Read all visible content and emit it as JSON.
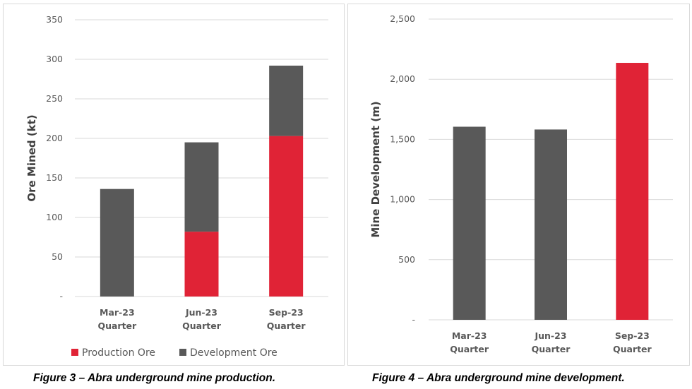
{
  "colors": {
    "production": "#E02336",
    "development": "#595959",
    "grid": "#d9d9d9",
    "axis_text": "#595959"
  },
  "chart_data": [
    {
      "type": "bar",
      "stacked": true,
      "title": "",
      "caption": "Figure 3 – Abra underground mine production.",
      "xlabel": "",
      "ylabel": "Ore Mined (kt)",
      "ylim": [
        0,
        350
      ],
      "yticks": [
        0,
        50,
        100,
        150,
        200,
        250,
        300,
        350
      ],
      "ytick_labels": [
        "-",
        "50",
        "100",
        "150",
        "200",
        "250",
        "300",
        "350"
      ],
      "grid": true,
      "categories": [
        [
          "Mar-23",
          "Quarter"
        ],
        [
          "Jun-23",
          "Quarter"
        ],
        [
          "Sep-23",
          "Quarter"
        ]
      ],
      "series": [
        {
          "name": "Production Ore",
          "color": "#E02336",
          "values": [
            0,
            82,
            203
          ]
        },
        {
          "name": "Development Ore",
          "color": "#595959",
          "values": [
            136,
            113,
            89
          ]
        }
      ],
      "legend": {
        "position": "bottom",
        "entries": [
          "Production Ore",
          "Development Ore"
        ]
      }
    },
    {
      "type": "bar",
      "stacked": false,
      "title": "",
      "caption": "Figure 4 – Abra underground mine development.",
      "xlabel": "",
      "ylabel": "Mine Development (m)",
      "ylim": [
        0,
        2500
      ],
      "yticks": [
        0,
        500,
        1000,
        1500,
        2000,
        2500
      ],
      "ytick_labels": [
        "-",
        "500",
        "1,000",
        "1,500",
        "2,000",
        "2,500"
      ],
      "grid": true,
      "categories": [
        [
          "Mar-23",
          "Quarter"
        ],
        [
          "Jun-23",
          "Quarter"
        ],
        [
          "Sep-23",
          "Quarter"
        ]
      ],
      "series": [
        {
          "name": "Mine Development",
          "values": [
            1605,
            1582,
            2136
          ],
          "colors": [
            "#595959",
            "#595959",
            "#E02336"
          ]
        }
      ],
      "legend": null
    }
  ]
}
